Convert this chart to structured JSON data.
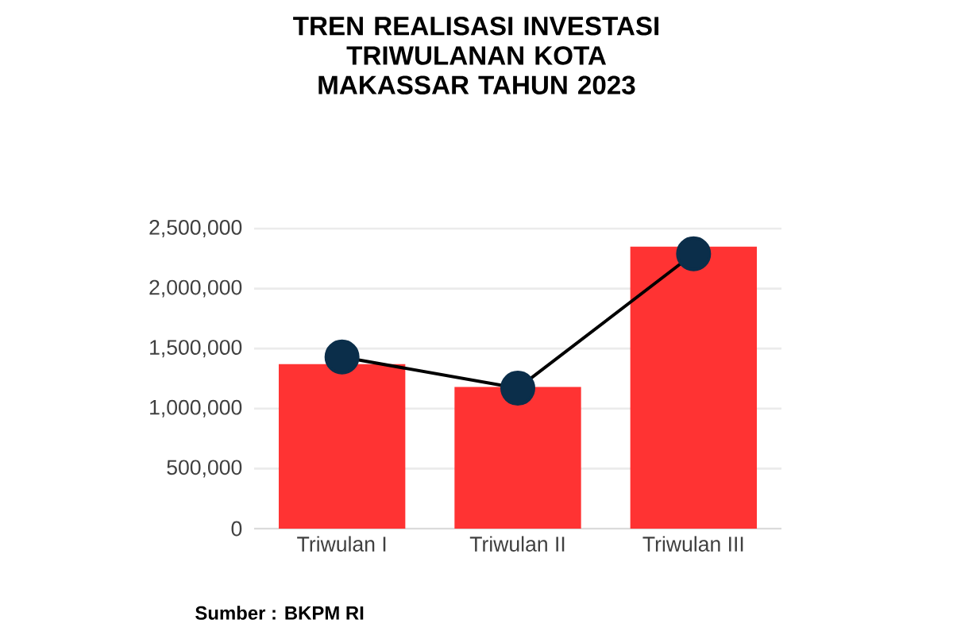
{
  "chart_data": {
    "type": "bar",
    "title": "TREN REALISASI INVESTASI TRIWULANAN KOTA MAKASSAR TAHUN 2023",
    "categories": [
      "Triwulan I",
      "Triwulan II",
      "Triwulan III"
    ],
    "series": [
      {
        "color": "#ff3333",
        "values": [
          1370000,
          1180000,
          2350000
        ]
      },
      {
        "type": "line",
        "color": "#0b2e4a",
        "marker": "circle",
        "values": [
          1430000,
          1170000,
          2290000
        ]
      }
    ],
    "ylim": [
      0,
      2500000
    ],
    "yticks": [
      {
        "value": 0,
        "label": "0"
      },
      {
        "value": 500000,
        "label": "500,000"
      },
      {
        "value": 1000000,
        "label": "1,000,000"
      },
      {
        "value": 1500000,
        "label": "1,500,000"
      },
      {
        "value": 2000000,
        "label": "2,000,000"
      },
      {
        "value": 2500000,
        "label": "2,500,000"
      }
    ],
    "grid": "y",
    "annotations": [
      "Sumber : BKPM RI"
    ]
  }
}
